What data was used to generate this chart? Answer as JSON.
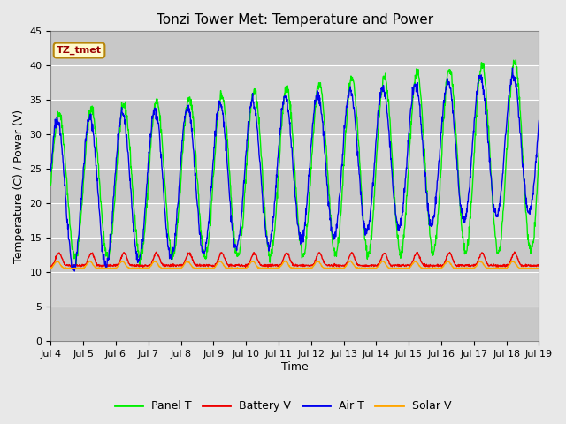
{
  "title": "Tonzi Tower Met: Temperature and Power",
  "xlabel": "Time",
  "ylabel": "Temperature (C) / Power (V)",
  "ylim": [
    0,
    45
  ],
  "yticks": [
    0,
    5,
    10,
    15,
    20,
    25,
    30,
    35,
    40,
    45
  ],
  "xtick_labels": [
    "Jul 4",
    "Jul 5",
    "Jul 6",
    "Jul 7",
    "Jul 8",
    "Jul 9",
    "Jul 10",
    "Jul 11",
    "Jul 12",
    "Jul 13",
    "Jul 14",
    "Jul 15",
    "Jul 16",
    "Jul 17",
    "Jul 18",
    "Jul 19"
  ],
  "colors": {
    "panel_t": "#00EE00",
    "battery_v": "#EE0000",
    "air_t": "#0000EE",
    "solar_v": "#FFA500"
  },
  "fig_bg": "#E8E8E8",
  "plot_bg": "#D3D3D3",
  "stripe_color": "#C0C0C0",
  "legend_labels": [
    "Panel T",
    "Battery V",
    "Air T",
    "Solar V"
  ],
  "annotation_text": "TZ_tmet",
  "annotation_fg": "#990000",
  "annotation_bg": "#FFFACD",
  "annotation_edge": "#B8860B"
}
